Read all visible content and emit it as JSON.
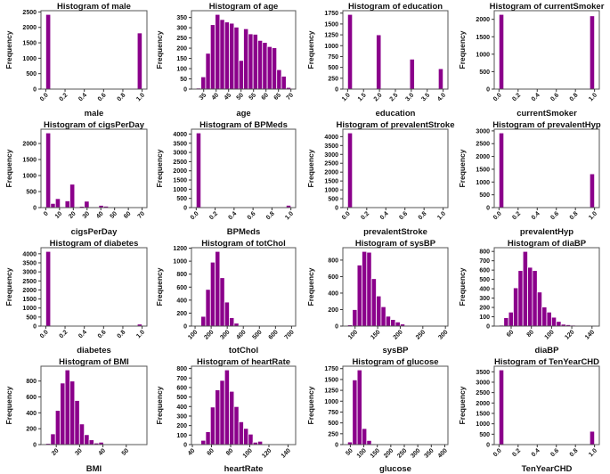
{
  "colors": {
    "bar": "#8b008b",
    "bar_edge": "#ffffff",
    "axes": "#555555"
  },
  "chart_data": [
    {
      "type": "bar",
      "title": "Histogram of male",
      "xlabel": "male",
      "ylabel": "Frequency",
      "range": [
        0,
        1
      ],
      "counts": [
        2420,
        0,
        0,
        0,
        0,
        0,
        0,
        0,
        0,
        0,
        0,
        0,
        0,
        0,
        0,
        0,
        0,
        0,
        0,
        1820
      ],
      "xticks": [
        "0.0",
        "0.2",
        "0.4",
        "0.6",
        "0.8",
        "1.0"
      ],
      "yticks": [
        "0",
        "500",
        "1000",
        "1500",
        "2000",
        "2500"
      ]
    },
    {
      "type": "bar",
      "title": "Histogram of age",
      "xlabel": "age",
      "ylabel": "Frequency",
      "range": [
        32,
        70
      ],
      "counts": [
        5,
        60,
        175,
        315,
        365,
        340,
        328,
        322,
        303,
        140,
        295,
        270,
        268,
        238,
        228,
        208,
        202,
        95,
        63,
        8
      ],
      "xticks": [
        "35",
        "40",
        "45",
        "50",
        "55",
        "60",
        "65",
        "70"
      ],
      "yticks": [
        "0",
        "50",
        "100",
        "150",
        "200",
        "250",
        "300",
        "350"
      ]
    },
    {
      "type": "bar",
      "title": "Histogram of education",
      "xlabel": "education",
      "ylabel": "Frequency",
      "range": [
        1,
        4
      ],
      "counts": [
        1720,
        0,
        0,
        0,
        0,
        0,
        1250,
        0,
        0,
        0,
        0,
        0,
        0,
        690,
        0,
        0,
        0,
        0,
        0,
        470
      ],
      "xticks": [
        "1.0",
        "1.5",
        "2.0",
        "2.5",
        "3.0",
        "3.5",
        "4.0"
      ],
      "yticks": [
        "0",
        "250",
        "500",
        "750",
        "1000",
        "1250",
        "1500",
        "1750"
      ]
    },
    {
      "type": "bar",
      "title": "Histogram of currentSmoker",
      "xlabel": "currentSmoker",
      "ylabel": "Frequency",
      "range": [
        0,
        1
      ],
      "counts": [
        2140,
        0,
        0,
        0,
        0,
        0,
        0,
        0,
        0,
        0,
        0,
        0,
        0,
        0,
        0,
        0,
        0,
        0,
        0,
        2100
      ],
      "xticks": [
        "0.0",
        "0.2",
        "0.4",
        "0.6",
        "0.8",
        "1.0"
      ],
      "yticks": [
        "0",
        "500",
        "1000",
        "1500",
        "2000"
      ]
    },
    {
      "type": "bar",
      "title": "Histogram of cigsPerDay",
      "xlabel": "cigsPerDay",
      "ylabel": "Frequency",
      "range": [
        0,
        70
      ],
      "counts": [
        2330,
        130,
        280,
        0,
        210,
        730,
        0,
        40,
        200,
        0,
        15,
        70,
        45,
        3,
        1,
        0,
        0,
        0,
        0,
        1
      ],
      "xticks": [
        "0",
        "10",
        "20",
        "30",
        "40",
        "50",
        "60",
        "70"
      ],
      "yticks": [
        "0",
        "500",
        "1000",
        "1500",
        "2000"
      ]
    },
    {
      "type": "bar",
      "title": "Histogram of BPMeds",
      "xlabel": "BPMeds",
      "ylabel": "Frequency",
      "range": [
        0,
        1
      ],
      "counts": [
        4060,
        0,
        0,
        0,
        0,
        0,
        0,
        0,
        0,
        0,
        0,
        0,
        0,
        0,
        0,
        0,
        0,
        0,
        0,
        125
      ],
      "xticks": [
        "0.0",
        "0.2",
        "0.4",
        "0.6",
        "0.8",
        "1.0"
      ],
      "yticks": [
        "0",
        "500",
        "1000",
        "1500",
        "2000",
        "2500",
        "3000",
        "3500",
        "4000"
      ]
    },
    {
      "type": "bar",
      "title": "Histogram of prevalentStroke",
      "xlabel": "prevalentStroke",
      "ylabel": "Frequency",
      "range": [
        0,
        1
      ],
      "counts": [
        4210,
        0,
        0,
        0,
        0,
        0,
        0,
        0,
        0,
        0,
        0,
        0,
        0,
        0,
        0,
        0,
        0,
        0,
        0,
        25
      ],
      "xticks": [
        "0.0",
        "0.2",
        "0.4",
        "0.6",
        "0.8",
        "1.0"
      ],
      "yticks": [
        "0",
        "500",
        "1000",
        "1500",
        "2000",
        "2500",
        "3000",
        "3500",
        "4000"
      ]
    },
    {
      "type": "bar",
      "title": "Histogram of prevalentHyp",
      "xlabel": "prevalentHyp",
      "ylabel": "Frequency",
      "range": [
        0,
        1
      ],
      "counts": [
        2920,
        0,
        0,
        0,
        0,
        0,
        0,
        0,
        0,
        0,
        0,
        0,
        0,
        0,
        0,
        0,
        0,
        0,
        0,
        1320
      ],
      "xticks": [
        "0.0",
        "0.2",
        "0.4",
        "0.6",
        "0.8",
        "1.0"
      ],
      "yticks": [
        "0",
        "500",
        "1000",
        "1500",
        "2000",
        "2500",
        "3000"
      ]
    },
    {
      "type": "bar",
      "title": "Histogram of diabetes",
      "xlabel": "diabetes",
      "ylabel": "Frequency",
      "range": [
        0,
        1
      ],
      "counts": [
        4130,
        0,
        0,
        0,
        0,
        0,
        0,
        0,
        0,
        0,
        0,
        0,
        0,
        0,
        0,
        0,
        0,
        0,
        0,
        110
      ],
      "xticks": [
        "0.0",
        "0.2",
        "0.4",
        "0.6",
        "0.8",
        "1.0"
      ],
      "yticks": [
        "0",
        "500",
        "1000",
        "1500",
        "2000",
        "2500",
        "3000",
        "3500",
        "4000"
      ]
    },
    {
      "type": "bar",
      "title": "Histogram of totChol",
      "xlabel": "totChol",
      "ylabel": "Frequency",
      "range": [
        107,
        696
      ],
      "counts": [
        10,
        150,
        565,
        985,
        1150,
        745,
        370,
        130,
        45,
        10,
        3,
        0,
        0,
        0,
        0,
        0,
        0,
        0,
        0,
        1
      ],
      "xticks": [
        "100",
        "200",
        "300",
        "400",
        "500",
        "600",
        "700"
      ],
      "yticks": [
        "0",
        "200",
        "400",
        "600",
        "800",
        "1000",
        "1200"
      ]
    },
    {
      "type": "bar",
      "title": "Histogram of sysBP",
      "xlabel": "sysBP",
      "ylabel": "Frequency",
      "range": [
        83.5,
        295
      ],
      "counts": [
        15,
        200,
        740,
        905,
        895,
        575,
        365,
        235,
        120,
        80,
        50,
        25,
        10,
        3,
        2,
        0,
        0,
        0,
        0,
        1
      ],
      "xticks": [
        "100",
        "150",
        "200",
        "250",
        "300"
      ],
      "yticks": [
        "0",
        "200",
        "400",
        "600",
        "800"
      ]
    },
    {
      "type": "bar",
      "title": "Histogram of diaBP",
      "xlabel": "diaBP",
      "ylabel": "Frequency",
      "range": [
        48,
        142.5
      ],
      "counts": [
        10,
        90,
        150,
        410,
        595,
        800,
        630,
        595,
        365,
        205,
        150,
        95,
        50,
        20,
        15,
        10,
        2,
        0,
        0,
        1
      ],
      "xticks": [
        "60",
        "80",
        "100",
        "120",
        "140"
      ],
      "yticks": [
        "0",
        "100",
        "200",
        "300",
        "400",
        "500",
        "600",
        "700",
        "800"
      ]
    },
    {
      "type": "bar",
      "title": "Histogram of BMI",
      "xlabel": "BMI",
      "ylabel": "Frequency",
      "range": [
        15.5,
        56.8
      ],
      "counts": [
        15,
        135,
        430,
        775,
        940,
        800,
        555,
        260,
        125,
        60,
        20,
        30,
        3,
        2,
        0,
        0,
        0,
        0,
        0,
        1
      ],
      "xticks": [
        "20",
        "30",
        "40",
        "50"
      ],
      "yticks": [
        "0",
        "200",
        "400",
        "600",
        "800"
      ]
    },
    {
      "type": "bar",
      "title": "Histogram of heartRate",
      "xlabel": "heartRate",
      "ylabel": "Frequency",
      "range": [
        44,
        143
      ],
      "counts": [
        5,
        45,
        135,
        395,
        575,
        675,
        785,
        560,
        400,
        240,
        170,
        110,
        25,
        35,
        0,
        5,
        0,
        0,
        0,
        1
      ],
      "xticks": [
        "40",
        "60",
        "80",
        "100",
        "120",
        "140"
      ],
      "yticks": [
        "0",
        "100",
        "200",
        "300",
        "400",
        "500",
        "600",
        "700",
        "800"
      ]
    },
    {
      "type": "bar",
      "title": "Histogram of glucose",
      "xlabel": "glucose",
      "ylabel": "Frequency",
      "range": [
        40,
        394
      ],
      "counts": [
        60,
        1490,
        1720,
        370,
        95,
        20,
        10,
        5,
        3,
        2,
        1,
        1,
        0,
        0,
        0,
        0,
        0,
        0,
        0,
        1
      ],
      "xticks": [
        "50",
        "100",
        "150",
        "200",
        "250",
        "300",
        "350",
        "400"
      ],
      "yticks": [
        "0",
        "250",
        "500",
        "750",
        "1000",
        "1250",
        "1500",
        "1750"
      ]
    },
    {
      "type": "bar",
      "title": "Histogram of TenYearCHD",
      "xlabel": "TenYearCHD",
      "ylabel": "Frequency",
      "range": [
        0,
        1
      ],
      "counts": [
        3590,
        0,
        0,
        0,
        0,
        0,
        0,
        0,
        0,
        0,
        0,
        0,
        0,
        0,
        0,
        0,
        0,
        0,
        0,
        640
      ],
      "xticks": [
        "0.0",
        "0.2",
        "0.4",
        "0.6",
        "0.8",
        "1.0"
      ],
      "yticks": [
        "0",
        "500",
        "1000",
        "1500",
        "2000",
        "2500",
        "3000",
        "3500"
      ]
    }
  ]
}
